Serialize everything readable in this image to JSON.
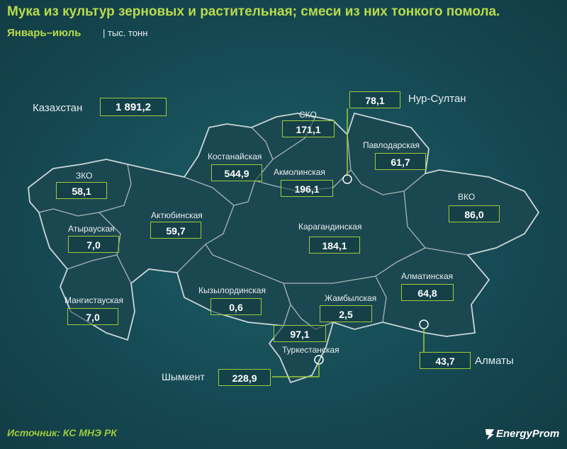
{
  "header": {
    "title": "Мука из культур зерновых и растительная; смеси из них тонкого помола.",
    "subtitle": "Январь–июль",
    "unit": "| тыс. тонн"
  },
  "total": {
    "label": "Казахстан",
    "value": "1 891,2"
  },
  "regions": [
    {
      "id": "zko",
      "label": "ЗКО",
      "value": "58,1"
    },
    {
      "id": "atyrau",
      "label": "Атырауская",
      "value": "7,0"
    },
    {
      "id": "mangistau",
      "label": "Мангистауская",
      "value": "7,0"
    },
    {
      "id": "aktobe",
      "label": "Актюбинская",
      "value": "59,7"
    },
    {
      "id": "kostanay",
      "label": "Костанайская",
      "value": "544,9"
    },
    {
      "id": "sko",
      "label": "СКО",
      "value": "171,1"
    },
    {
      "id": "akmola",
      "label": "Акмолинская",
      "value": "196,1"
    },
    {
      "id": "nursultan",
      "label": "Нур-Султан",
      "value": "78,1"
    },
    {
      "id": "pavlodar",
      "label": "Павлодарская",
      "value": "61,7"
    },
    {
      "id": "vko",
      "label": "ВКО",
      "value": "86,0"
    },
    {
      "id": "karaganda",
      "label": "Карагандинская",
      "value": "184,1"
    },
    {
      "id": "kyzylorda",
      "label": "Кызылординская",
      "value": "0,6"
    },
    {
      "id": "zhambyl",
      "label": "Жамбылская",
      "value": "2,5"
    },
    {
      "id": "almaty_obl",
      "label": "Алматинская",
      "value": "64,8"
    },
    {
      "id": "turkestan",
      "label": "Туркестанская",
      "value": "97,1"
    },
    {
      "id": "shymkent",
      "label": "Шымкент",
      "value": "228,9"
    },
    {
      "id": "almaty",
      "label": "Алматы",
      "value": "43,7"
    }
  ],
  "footer": {
    "source": "Источник: КС МНЭ РК",
    "logo": "EnergyProm"
  },
  "colors": {
    "accent": "#9ccc3c",
    "title": "#b9db4c",
    "background": "#164a54"
  }
}
